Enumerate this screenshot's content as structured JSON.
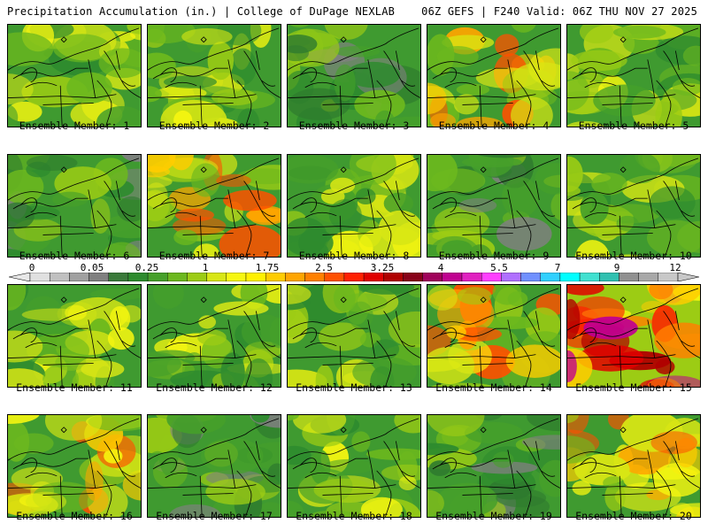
{
  "header": {
    "left": "Precipitation Accumulation (in.) | College of DuPage NEXLAB",
    "right": "06Z GEFS | F240 Valid: 06Z THU NOV 27 2025"
  },
  "colorbar": {
    "labels": [
      "0",
      "0.05",
      "0.25",
      "1",
      "1.75",
      "2.5",
      "3.25",
      "4",
      "5.5",
      "7",
      "9",
      "12"
    ],
    "colors": [
      "#e0e0e0",
      "#c0c0c0",
      "#a0a0a0",
      "#808080",
      "#3a7a3a",
      "#2e8b2e",
      "#46a02a",
      "#6cb81e",
      "#9ccc14",
      "#d8e614",
      "#f6f610",
      "#fff000",
      "#ffcc00",
      "#ffa500",
      "#ff8000",
      "#ff5000",
      "#ff2000",
      "#e00000",
      "#b00000",
      "#880018",
      "#a0005a",
      "#c00090",
      "#e020c0",
      "#ff40ff",
      "#b070ff",
      "#7090ff",
      "#30d0ff",
      "#00ffff",
      "#40e0d0",
      "#30c0b0",
      "#909090",
      "#a8a8a8",
      "#c8c8c8"
    ]
  },
  "members": [
    {
      "label": "Ensemble Member: 1",
      "wetness": 0.45
    },
    {
      "label": "Ensemble Member: 2",
      "wetness": 0.5
    },
    {
      "label": "Ensemble Member: 3",
      "wetness": 0.2
    },
    {
      "label": "Ensemble Member: 4",
      "wetness": 0.65
    },
    {
      "label": "Ensemble Member: 5",
      "wetness": 0.45
    },
    {
      "label": "Ensemble Member: 6",
      "wetness": 0.3
    },
    {
      "label": "Ensemble Member: 7",
      "wetness": 0.6
    },
    {
      "label": "Ensemble Member: 8",
      "wetness": 0.4
    },
    {
      "label": "Ensemble Member: 9",
      "wetness": 0.2
    },
    {
      "label": "Ensemble Member: 10",
      "wetness": 0.4
    },
    {
      "label": "Ensemble Member: 11",
      "wetness": 0.5
    },
    {
      "label": "Ensemble Member: 12",
      "wetness": 0.35
    },
    {
      "label": "Ensemble Member: 13",
      "wetness": 0.45
    },
    {
      "label": "Ensemble Member: 14",
      "wetness": 0.6
    },
    {
      "label": "Ensemble Member: 15",
      "wetness": 0.9
    },
    {
      "label": "Ensemble Member: 16",
      "wetness": 0.55
    },
    {
      "label": "Ensemble Member: 17",
      "wetness": 0.2
    },
    {
      "label": "Ensemble Member: 18",
      "wetness": 0.35
    },
    {
      "label": "Ensemble Member: 19",
      "wetness": 0.25
    },
    {
      "label": "Ensemble Member: 20",
      "wetness": 0.6
    }
  ]
}
